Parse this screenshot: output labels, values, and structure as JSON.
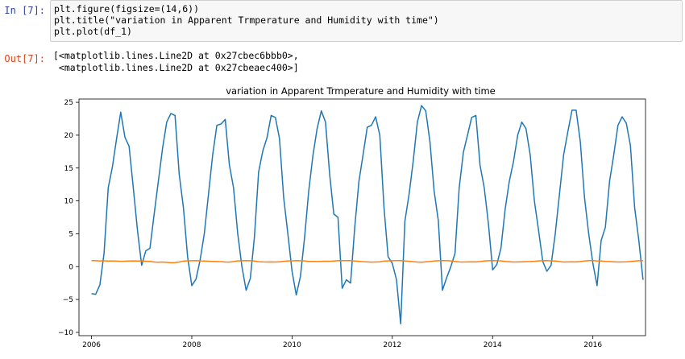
{
  "cell": {
    "in_prompt": "In [7]:",
    "out_prompt": "Out[7]:",
    "code": [
      "plt.figure(figsize=(14,6))",
      "plt.title(\"variation in Apparent Trmperature and Humidity with time\")",
      "plt.plot(df_1)"
    ],
    "output": [
      "[<matplotlib.lines.Line2D at 0x27cbec6bbb0>,",
      " <matplotlib.lines.Line2D at 0x27cbeaec400>]"
    ]
  },
  "chart_data": {
    "type": "line",
    "title": "variation in Apparent Trmperature and Humidity with time",
    "xlabel": "",
    "ylabel": "",
    "xlim": [
      2005.75,
      2017.05
    ],
    "ylim": [
      -10.5,
      25.5
    ],
    "x_ticks": [
      "2006",
      "2008",
      "2010",
      "2012",
      "2014",
      "2016"
    ],
    "y_ticks": [
      "25",
      "20",
      "15",
      "10",
      "5",
      "0",
      "−5",
      "−10"
    ],
    "grid": false,
    "legend": "none",
    "x_start_year": 2006,
    "series": [
      {
        "color": "#1f77b4",
        "values": [
          -4.1,
          -4.2,
          -2.8,
          2,
          12,
          15.2,
          19.5,
          23.5,
          19.7,
          18.3,
          12,
          5.5,
          0.2,
          2.4,
          2.8,
          8,
          13,
          18,
          22,
          23.3,
          23,
          14,
          9,
          1.5,
          -2.9,
          -1.9,
          1,
          5,
          11,
          17,
          21.5,
          21.7,
          22.4,
          15.5,
          12,
          5,
          0,
          -3.6,
          -1.8,
          4.5,
          14.4,
          17.6,
          19.6,
          23,
          22.7,
          19.5,
          10.5,
          5,
          -0.7,
          -4.3,
          -1.5,
          4.5,
          11.5,
          16.9,
          21,
          23.7,
          22,
          14,
          8,
          7.5,
          -3.3,
          -2,
          -2.5,
          6,
          13,
          17,
          21.2,
          21.5,
          22.8,
          20,
          9,
          1.5,
          0.5,
          -2,
          -8.7,
          6.9,
          11,
          16,
          22,
          24.5,
          23.7,
          19,
          11.5,
          7,
          -3.6,
          -1.7,
          0,
          2,
          12,
          17.4,
          20,
          22.7,
          23,
          15.4,
          12,
          6.5,
          -0.5,
          0.3,
          2.8,
          8.7,
          13,
          16,
          20,
          22,
          21,
          17,
          10,
          5.5,
          0.8,
          -0.7,
          0.2,
          5,
          11,
          17,
          20.5,
          23.8,
          23.8,
          19,
          10.5,
          5,
          0.5,
          -2.9,
          4,
          6,
          13,
          17,
          21.5,
          22.8,
          21.8,
          18.4,
          9,
          4,
          -2
        ]
      },
      {
        "color": "#ff7f0e",
        "values": [
          0.92,
          0.9,
          0.88,
          0.87,
          0.86,
          0.85,
          0.84,
          0.82,
          0.83,
          0.85,
          0.87,
          0.86,
          0.86,
          0.83,
          0.8,
          0.7,
          0.68,
          0.7,
          0.64,
          0.6,
          0.62,
          0.7,
          0.85,
          0.87,
          0.9,
          0.91,
          0.88,
          0.86,
          0.83,
          0.8,
          0.78,
          0.76,
          0.7,
          0.69,
          0.78,
          0.87,
          0.9,
          0.92,
          0.9,
          0.85,
          0.75,
          0.72,
          0.7,
          0.72,
          0.7,
          0.74,
          0.82,
          0.88,
          0.88,
          0.92,
          0.9,
          0.87,
          0.8,
          0.79,
          0.78,
          0.8,
          0.83,
          0.82,
          0.86,
          0.9,
          0.92,
          0.93,
          0.92,
          0.85,
          0.81,
          0.75,
          0.72,
          0.69,
          0.7,
          0.73,
          0.84,
          0.87,
          0.9,
          0.91,
          0.93,
          0.88,
          0.82,
          0.75,
          0.7,
          0.68,
          0.73,
          0.78,
          0.85,
          0.9,
          0.91,
          0.92,
          0.88,
          0.8,
          0.72,
          0.7,
          0.72,
          0.74,
          0.72,
          0.78,
          0.86,
          0.9,
          0.92,
          0.9,
          0.88,
          0.8,
          0.75,
          0.7,
          0.72,
          0.74,
          0.76,
          0.78,
          0.82,
          0.88,
          0.9,
          0.91,
          0.88,
          0.85,
          0.78,
          0.7,
          0.72,
          0.74,
          0.72,
          0.78,
          0.86,
          0.92,
          0.92,
          0.88,
          0.85,
          0.8,
          0.78,
          0.74,
          0.7,
          0.72,
          0.73,
          0.78,
          0.84,
          0.9,
          0.9
        ]
      }
    ]
  }
}
